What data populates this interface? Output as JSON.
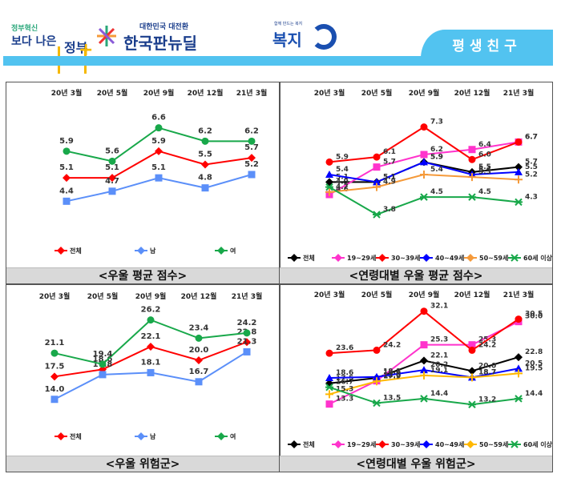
{
  "header": {
    "logo_left": {
      "small": "정부혁신",
      "big": "보다 나은",
      "bracket_text": "정부"
    },
    "logo_center": {
      "sub": "대한민국 대전환",
      "main": "한국판뉴딜"
    },
    "logo_right": {
      "sub": "함께 만드는 복지",
      "main": "복지"
    },
    "tab_label": "평생친구"
  },
  "colors": {
    "banner": "#52c3f0",
    "total": "#ff0000",
    "male": "#5b8ff9",
    "female": "#18a84a",
    "age_total": "#000000",
    "age_19_29": "#ff33cc",
    "age_30_39": "#ff0000",
    "age_40_49": "#0000ff",
    "age_50_59_score": "#f59a3a",
    "age_50_59_risk": "#ffb800",
    "age_60_plus": "#18a84a"
  },
  "chart_data": [
    {
      "type": "line",
      "title": "<우울 평균 점수>",
      "categories": [
        "20년 3월",
        "20년 5월",
        "20년 9월",
        "20년 12월",
        "21년 3월"
      ],
      "ylim": [
        4.0,
        7.0
      ],
      "grid": false,
      "legend": "bottom",
      "series": [
        {
          "name": "전체",
          "marker": "diamond",
          "color_key": "total",
          "values": [
            5.1,
            5.1,
            5.9,
            5.5,
            5.7
          ]
        },
        {
          "name": "남",
          "marker": "square",
          "color_key": "male",
          "values": [
            4.4,
            4.7,
            5.1,
            4.8,
            5.2
          ]
        },
        {
          "name": "여",
          "marker": "circle",
          "color_key": "female",
          "values": [
            5.9,
            5.6,
            6.6,
            6.2,
            6.2
          ]
        }
      ]
    },
    {
      "type": "line",
      "title": "<연령대별 우울 평균 점수>",
      "categories": [
        "20년 3월",
        "20년 5월",
        "20년 9월",
        "20년 12월",
        "21년 3월"
      ],
      "ylim": [
        3.0,
        7.8
      ],
      "grid": false,
      "legend": "bottom",
      "series": [
        {
          "name": "전체",
          "marker": "diamond",
          "color_key": "age_total",
          "values": [
            5.1,
            5.1,
            5.9,
            5.5,
            5.7
          ]
        },
        {
          "name": "19~29세",
          "marker": "square",
          "color_key": "age_19_29",
          "values": [
            4.6,
            5.7,
            6.2,
            6.4,
            6.7
          ]
        },
        {
          "name": "30~39세",
          "marker": "circle",
          "color_key": "age_30_39",
          "values": [
            5.9,
            6.1,
            7.3,
            6.0,
            6.7
          ]
        },
        {
          "name": "40~49세",
          "marker": "triangle",
          "color_key": "age_40_49",
          "values": [
            5.4,
            5.1,
            5.9,
            5.4,
            5.5
          ]
        },
        {
          "name": "50~59세",
          "marker": "plus",
          "color_key": "age_50_59_score",
          "values": [
            4.7,
            4.9,
            5.4,
            5.3,
            5.2
          ]
        },
        {
          "name": "60세 이상",
          "marker": "x",
          "color_key": "age_60_plus",
          "values": [
            4.9,
            3.8,
            4.5,
            4.5,
            4.3
          ]
        }
      ]
    },
    {
      "type": "line",
      "title": "<우울 위험군>",
      "categories": [
        "20년 3월",
        "20년 5월",
        "20년 9월",
        "20년 12월",
        "21년 3월"
      ],
      "ylim": [
        12.0,
        28.0
      ],
      "grid": false,
      "legend": "bottom",
      "series": [
        {
          "name": "전체",
          "marker": "diamond",
          "color_key": "total",
          "values": [
            17.5,
            18.6,
            22.1,
            20.0,
            22.8
          ]
        },
        {
          "name": "남",
          "marker": "square",
          "color_key": "male",
          "values": [
            14.0,
            17.8,
            18.1,
            16.7,
            21.3
          ]
        },
        {
          "name": "여",
          "marker": "circle",
          "color_key": "female",
          "values": [
            21.1,
            19.4,
            26.2,
            23.4,
            24.2
          ]
        }
      ]
    },
    {
      "type": "line",
      "title": "<연령대별 우울 위험군>",
      "categories": [
        "20년 3월",
        "20년 5월",
        "20년 9월",
        "20년 12월",
        "21년 3월"
      ],
      "ylim": [
        10.0,
        34.0
      ],
      "grid": false,
      "legend": "bottom",
      "series": [
        {
          "name": "전체",
          "marker": "diamond",
          "color_key": "age_total",
          "values": [
            17.5,
            18.6,
            22.1,
            20.0,
            22.8
          ]
        },
        {
          "name": "19~29세",
          "marker": "square",
          "color_key": "age_19_29",
          "values": [
            13.3,
            18.0,
            25.3,
            25.3,
            30.0
          ]
        },
        {
          "name": "30~39세",
          "marker": "circle",
          "color_key": "age_30_39",
          "values": [
            23.6,
            24.2,
            32.1,
            24.2,
            30.5
          ]
        },
        {
          "name": "40~49세",
          "marker": "triangle",
          "color_key": "age_40_49",
          "values": [
            18.6,
            18.8,
            20.2,
            18.7,
            20.5
          ]
        },
        {
          "name": "50~59세",
          "marker": "plus",
          "color_key": "age_50_59_risk",
          "values": [
            15.3,
            17.9,
            19.1,
            18.7,
            19.5
          ]
        },
        {
          "name": "60세 이상",
          "marker": "x",
          "color_key": "age_60_plus",
          "values": [
            16.7,
            13.5,
            14.4,
            13.2,
            14.4
          ]
        }
      ]
    }
  ]
}
